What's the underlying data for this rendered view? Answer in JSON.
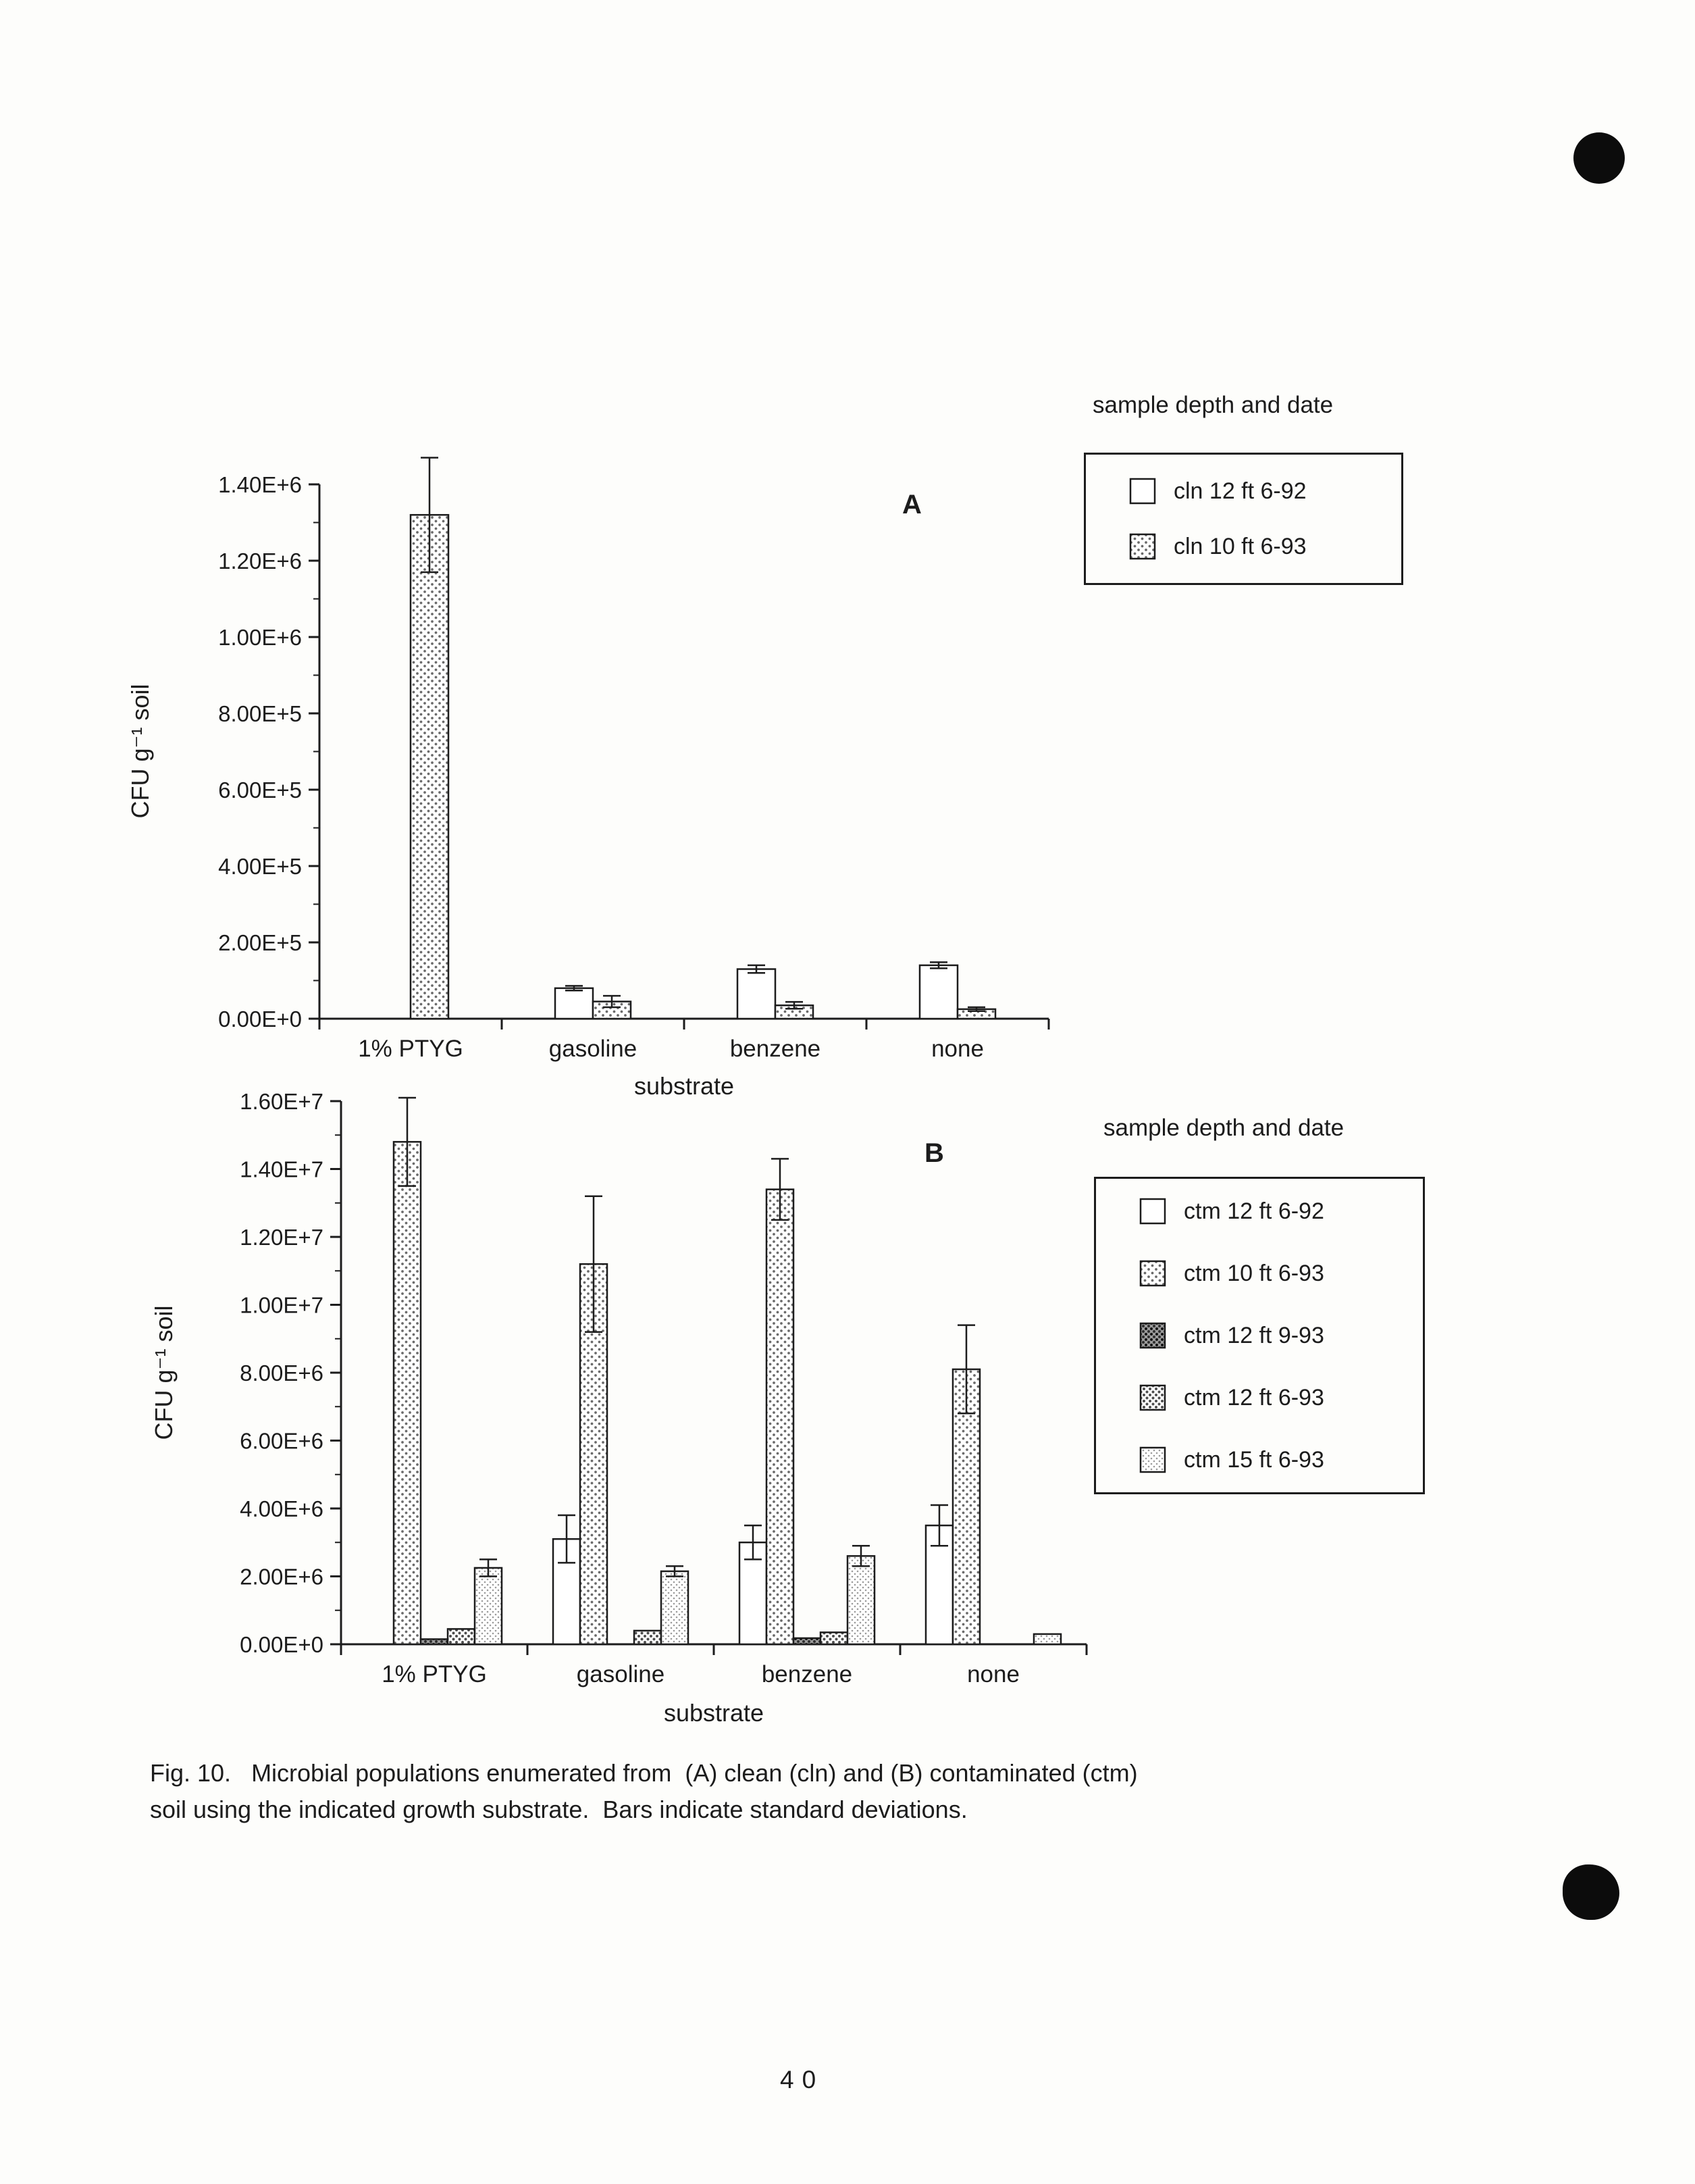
{
  "page": {
    "number": "40",
    "caption_line1": "Fig. 10.   Microbial populations enumerated from  (A) clean (cln) and (B) contaminated (ctm)",
    "caption_line2": "soil using the indicated growth substrate.  Bars indicate standard deviations."
  },
  "colors": {
    "ink": "#1c1c1c",
    "paper": "#fdfdfb"
  },
  "chart_data": [
    {
      "type": "bar",
      "panel_label": "A",
      "legend_title": "sample depth and date",
      "legend_position": "top-right",
      "xlabel": "substrate",
      "ylabel": "CFU g⁻¹ soil",
      "categories": [
        "1% PTYG",
        "gasoline",
        "benzene",
        "none"
      ],
      "ylim": [
        0,
        1400000
      ],
      "ytick_step": 200000,
      "ytick_labels": [
        "0.00E+0",
        "2.00E+5",
        "4.00E+5",
        "6.00E+5",
        "8.00E+5",
        "1.00E+6",
        "1.20E+6",
        "1.40E+6"
      ],
      "series": [
        {
          "name": "cln 12 ft 6-92",
          "style": "white",
          "values": [
            0,
            80000,
            130000,
            140000
          ],
          "errors": [
            0,
            6000,
            10000,
            8000
          ]
        },
        {
          "name": "cln 10 ft 6-93",
          "style": "stipple-light",
          "values": [
            1320000,
            45000,
            35000,
            25000
          ],
          "errors": [
            150000,
            15000,
            9000,
            5000
          ]
        }
      ]
    },
    {
      "type": "bar",
      "panel_label": "B",
      "legend_title": "sample depth and date",
      "legend_position": "top-right",
      "xlabel": "substrate",
      "ylabel": "CFU g⁻¹ soil",
      "categories": [
        "1% PTYG",
        "gasoline",
        "benzene",
        "none"
      ],
      "ylim": [
        0,
        16000000
      ],
      "ytick_step": 2000000,
      "ytick_labels": [
        "0.00E+0",
        "2.00E+6",
        "4.00E+6",
        "6.00E+6",
        "8.00E+6",
        "1.00E+7",
        "1.20E+7",
        "1.40E+7",
        "1.60E+7"
      ],
      "series": [
        {
          "name": "ctm 12 ft 6-92",
          "style": "white",
          "values": [
            0,
            3100000,
            3000000,
            3500000
          ],
          "errors": [
            0,
            700000,
            500000,
            600000
          ]
        },
        {
          "name": "ctm 10 ft 6-93",
          "style": "stipple-light",
          "values": [
            14800000,
            11200000,
            13400000,
            8100000
          ],
          "errors": [
            1300000,
            2000000,
            900000,
            1300000
          ]
        },
        {
          "name": "ctm 12 ft 9-93",
          "style": "stipple-dark",
          "values": [
            150000,
            0,
            180000,
            0
          ],
          "errors": [
            0,
            0,
            0,
            0
          ]
        },
        {
          "name": "ctm 12 ft 6-93",
          "style": "stipple-med",
          "values": [
            450000,
            400000,
            350000,
            0
          ],
          "errors": [
            0,
            0,
            0,
            0
          ]
        },
        {
          "name": "ctm 15 ft 6-93",
          "style": "gray-light",
          "values": [
            2250000,
            2150000,
            2600000,
            300000
          ],
          "errors": [
            250000,
            150000,
            300000,
            0
          ]
        }
      ]
    }
  ]
}
